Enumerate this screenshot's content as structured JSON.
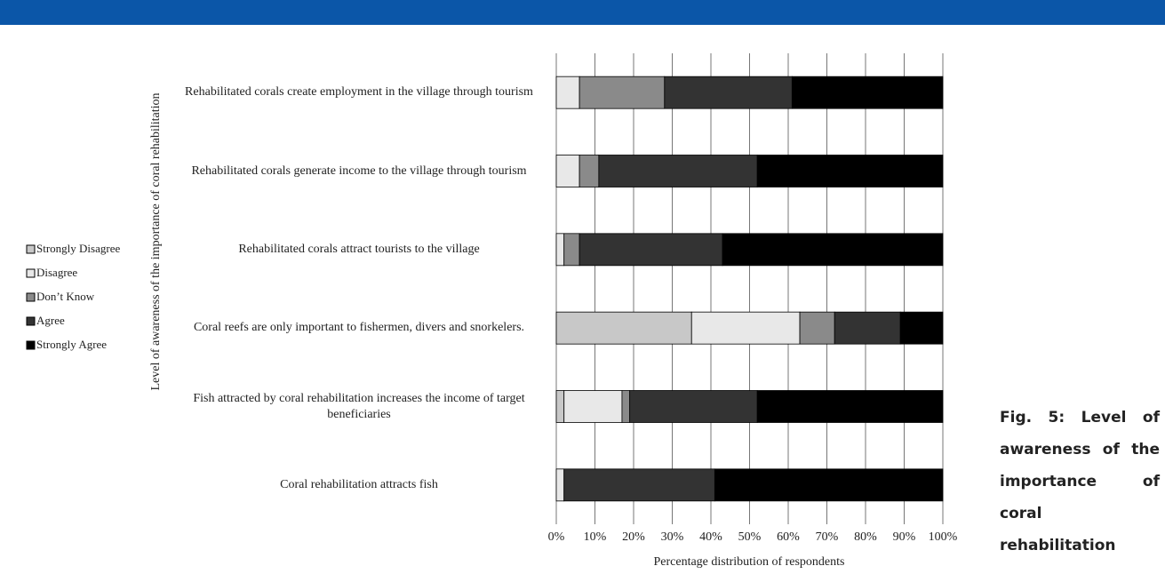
{
  "chart_data": {
    "type": "stacked-barh",
    "ylabel": "Level of awareness of the importance of coral rehabilitation",
    "xlabel": "Percentage distribution of respondents",
    "categories": [
      "Rehabilitated corals create employment in the village through tourism",
      "Rehabilitated corals generate income to the village through tourism",
      "Rehabilitated corals attract tourists to the village",
      "Coral reefs are only important to fishermen, divers and snorkelers.",
      "Fish attracted by coral rehabilitation increases the income of target beneficiaries",
      "Coral rehabilitation attracts fish"
    ],
    "series": [
      {
        "name": "Strongly Disagree",
        "color": "#c8c8c8",
        "values": [
          0,
          0,
          0,
          35,
          2,
          0
        ]
      },
      {
        "name": "Disagree",
        "color": "#e8e8e8",
        "values": [
          6,
          6,
          2,
          28,
          15,
          2
        ]
      },
      {
        "name": "Don’t Know",
        "color": "#8a8a8a",
        "values": [
          22,
          5,
          4,
          9,
          2,
          0
        ]
      },
      {
        "name": "Agree",
        "color": "#333333",
        "values": [
          33,
          41,
          37,
          17,
          33,
          39
        ]
      },
      {
        "name": "Strongly Agree",
        "color": "#000000",
        "values": [
          39,
          48,
          57,
          11,
          48,
          59
        ]
      }
    ],
    "xlim": [
      0,
      100
    ],
    "xticks": [
      {
        "value": 0,
        "label": "0%"
      },
      {
        "value": 10,
        "label": "10%"
      },
      {
        "value": 20,
        "label": "20%"
      },
      {
        "value": 30,
        "label": "30%"
      },
      {
        "value": 40,
        "label": "40%"
      },
      {
        "value": 50,
        "label": "50%"
      },
      {
        "value": 60,
        "label": "60%"
      },
      {
        "value": 70,
        "label": "70%"
      },
      {
        "value": 80,
        "label": "80%"
      },
      {
        "value": 90,
        "label": "90%"
      },
      {
        "value": 100,
        "label": "100%"
      }
    ],
    "grid": true,
    "legend": "left"
  },
  "caption": "Fig. 5: Level of awareness of the importance of coral rehabilitation"
}
